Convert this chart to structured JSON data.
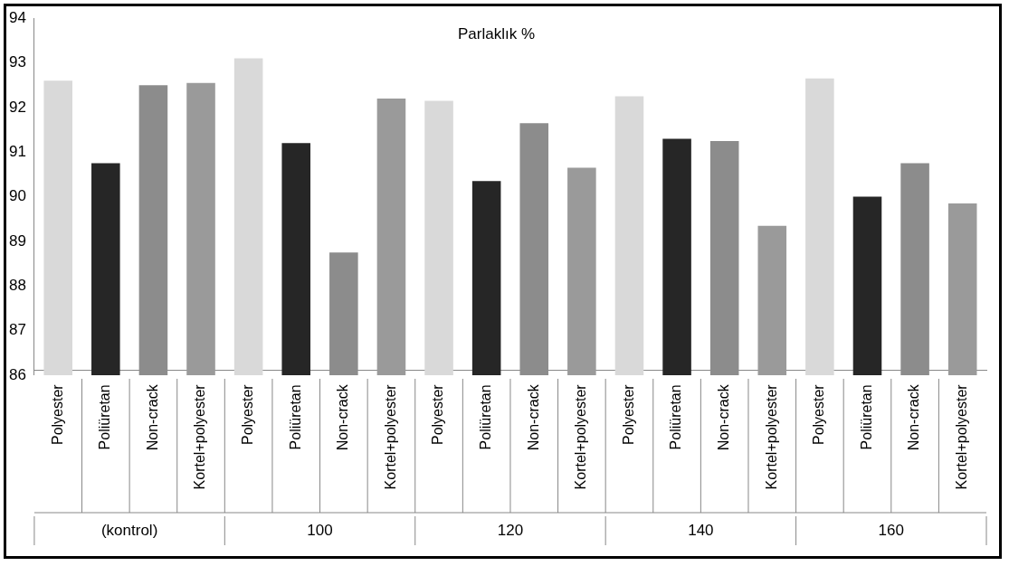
{
  "chart_data": {
    "type": "bar",
    "title": "Parlaklık %",
    "categories": [
      "Polyester",
      "Poliüretan",
      "Non-crack",
      "Kortel+polyester",
      "Polyester",
      "Poliüretan",
      "Non-crack",
      "Kortel+polyester",
      "Polyester",
      "Poliüretan",
      "Non-crack",
      "Kortel+polyester",
      "Polyester",
      "Poliüretan",
      "Non-crack",
      "Kortel+polyester",
      "Polyester",
      "Poliüretan",
      "Non-crack",
      "Kortel+polyester"
    ],
    "values": [
      92.6,
      90.75,
      92.5,
      92.55,
      93.1,
      91.2,
      88.75,
      92.2,
      92.15,
      90.35,
      91.65,
      90.65,
      92.25,
      91.3,
      91.25,
      89.35,
      92.65,
      90.0,
      90.75,
      89.85
    ],
    "colors": [
      "#d9d9d9",
      "#262626",
      "#8c8c8c",
      "#9a9a9a",
      "#d9d9d9",
      "#262626",
      "#8c8c8c",
      "#9a9a9a",
      "#d9d9d9",
      "#262626",
      "#8c8c8c",
      "#9a9a9a",
      "#d9d9d9",
      "#262626",
      "#8c8c8c",
      "#9a9a9a",
      "#d9d9d9",
      "#262626",
      "#8c8c8c",
      "#9a9a9a"
    ],
    "ylim": [
      86,
      94
    ],
    "yticks": [
      86,
      87,
      88,
      89,
      90,
      91,
      92,
      93,
      94
    ],
    "annotations": [
      "(kontrol)",
      "100",
      "120",
      "140",
      "160"
    ],
    "grid": false,
    "legend": false
  }
}
